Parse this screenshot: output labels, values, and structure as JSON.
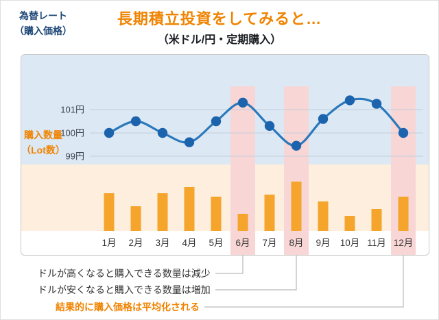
{
  "chart_data": {
    "type": "line+bar",
    "title": "長期積立投資をしてみると…",
    "subtitle": "（米ドル/円・定期購入）",
    "categories": [
      "1月",
      "2月",
      "3月",
      "4月",
      "5月",
      "6月",
      "7月",
      "8月",
      "9月",
      "10月",
      "11月",
      "12月"
    ],
    "series": [
      {
        "name": "為替レート（購入価格）",
        "type": "line",
        "unit": "円",
        "values": [
          100.0,
          100.5,
          100.0,
          99.6,
          100.5,
          101.3,
          100.3,
          99.45,
          100.6,
          101.4,
          101.25,
          100.0
        ]
      },
      {
        "name": "購入数量（Lot数）",
        "type": "bar",
        "unit": "Lot",
        "values": [
          5.5,
          3.6,
          5.5,
          6.4,
          5.0,
          2.5,
          5.3,
          7.2,
          4.3,
          2.2,
          3.2,
          5.0
        ]
      }
    ],
    "y_axis_left": {
      "ticks": [
        {
          "label": "101円",
          "value": 101
        },
        {
          "label": "100円",
          "value": 100
        },
        {
          "label": "99円",
          "value": 99
        }
      ]
    },
    "ylim_rate": [
      98.8,
      101.8
    ],
    "highlighted_categories": [
      "6月",
      "8月",
      "12月"
    ],
    "grid": "horizontal",
    "legend_position": "none"
  },
  "panel_labels": {
    "rate": "為替レート\n（購入価格）",
    "lot": "購入数量\n（Lot数）"
  },
  "annotations": [
    {
      "text": "ドルが高くなると購入できる数量は減少",
      "target_month": "6月",
      "color": "#333333",
      "bold": false
    },
    {
      "text": "ドルが安くなると購入できる数量は増加",
      "target_month": "8月",
      "color": "#333333",
      "bold": false
    },
    {
      "text": "結果的に購入価格は平均化される",
      "target_month": "12月",
      "color": "#f08300",
      "bold": true
    }
  ],
  "colors": {
    "title_orange": "#f08300",
    "bar_orange": "#f5a42c",
    "line_blue": "#2b78ba",
    "dot_blue": "#1c63ad",
    "band_pink": "#f8d6d6",
    "rate_bg": "#dce9f5",
    "lot_bg": "#fdeedd",
    "label_navy": "#1e4877",
    "tick_gray": "#3c4350",
    "leader_gray": "#a8a8a8"
  }
}
